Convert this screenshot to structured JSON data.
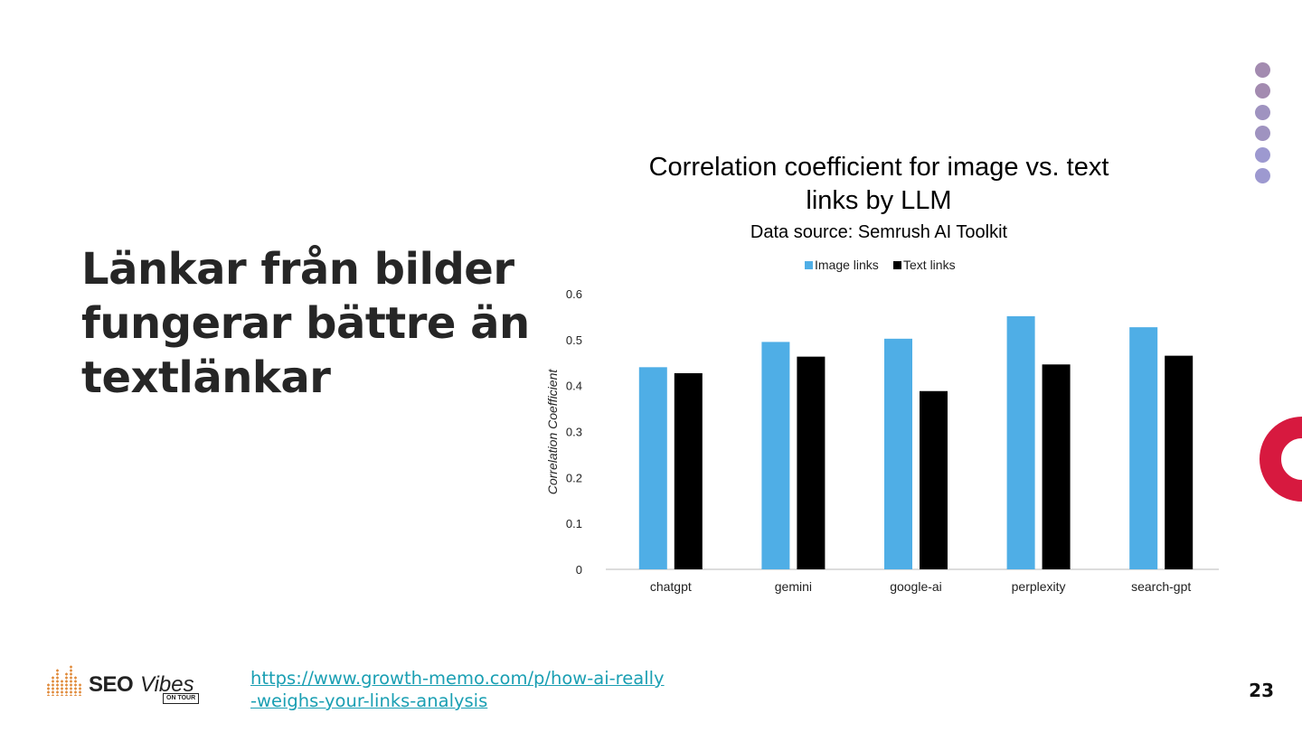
{
  "slide": {
    "title_lines": [
      "Länkar från bilder",
      "fungerar bättre än",
      "textlänkar"
    ],
    "link": "https://www.growth-memo.com/p/how-ai-really-weighs-your-links-analysis",
    "page_number": "23",
    "logo": {
      "seo": "SEO",
      "vibes": "Vibes",
      "tagline": "ON TOUR"
    },
    "decor_colors": {
      "dots": [
        "#a38bb0",
        "#a38bb0",
        "#9f93c0",
        "#9f93c0",
        "#9d99d0",
        "#9d99d0"
      ],
      "ring": "#d7193f"
    }
  },
  "chart_data": {
    "type": "bar",
    "title_lines": [
      "Correlation coefficient for image vs. text",
      "links by LLM"
    ],
    "subtitle": "Data source: Semrush AI Toolkit",
    "xlabel": "",
    "ylabel": "Correlation Coefficient",
    "ylim": [
      0,
      0.6
    ],
    "yticks": [
      "0",
      "0.1",
      "0.2",
      "0.3",
      "0.4",
      "0.5",
      "0.6"
    ],
    "categories": [
      "chatgpt",
      "gemini",
      "google-ai",
      "perplexity",
      "search-gpt"
    ],
    "series": [
      {
        "name": "Image links",
        "color": "#4faee6",
        "values": [
          0.44,
          0.495,
          0.502,
          0.551,
          0.527
        ]
      },
      {
        "name": "Text links",
        "color": "#000000",
        "values": [
          0.427,
          0.463,
          0.388,
          0.446,
          0.465
        ]
      }
    ],
    "legend": "top-center",
    "grid": false
  }
}
